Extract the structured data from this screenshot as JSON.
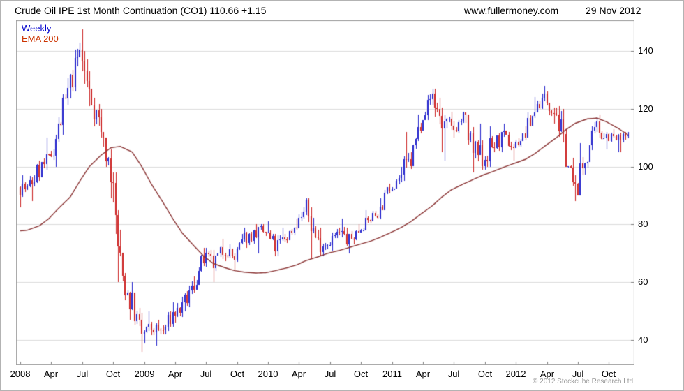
{
  "header": {
    "title": "Crude Oil IPE 1st Month Continuation (CO1) 110.66 +1.15",
    "website": "www.fullermoney.com",
    "date": "29 Nov 2012"
  },
  "footer": {
    "copyright": "© 2012 Stockcube Research Ltd"
  },
  "colors": {
    "legend_weekly": "#0000cc",
    "legend_ema": "#cc3300",
    "candle_up": "#2222cc",
    "candle_down": "#cc2222",
    "ema_line": "#8b3434",
    "grid": "#dcdcdc",
    "frame": "#a0a0a0",
    "tick": "#808080",
    "text": "#000000"
  },
  "chart_data": {
    "type": "candlestick",
    "instrument": "Crude Oil IPE 1st Month Continuation (CO1)",
    "interval": "Weekly",
    "last_price": 110.66,
    "change": "+1.15",
    "as_of": "29 Nov 2012",
    "ylim": [
      31,
      151
    ],
    "y_ticks": [
      40,
      60,
      80,
      100,
      120,
      140
    ],
    "x_tick_labels": [
      "2008",
      "Apr",
      "Jul",
      "Oct",
      "2009",
      "Apr",
      "Jul",
      "Oct",
      "2010",
      "Apr",
      "Jul",
      "Oct",
      "2011",
      "Apr",
      "Jul",
      "Oct",
      "2012",
      "Apr",
      "Jul",
      "Oct"
    ],
    "x_tick_month_step": 3,
    "grid": "horizontal",
    "legend_position": "top-left",
    "series": [
      {
        "name": "Weekly",
        "type": "candlestick"
      },
      {
        "name": "EMA 200",
        "type": "line",
        "monthly_values": [
          78,
          79.5,
          82,
          85.5,
          89.5,
          95,
          100,
          104,
          106.5,
          107,
          105,
          100,
          94,
          87.5,
          82,
          77,
          72.5,
          69,
          66.5,
          65,
          64,
          63.5,
          63.2,
          63.3,
          64,
          65,
          66,
          67.5,
          68.8,
          70,
          71,
          72,
          73,
          74.2,
          75.5,
          77,
          79,
          81,
          83.5,
          86.5,
          89.5,
          92,
          94,
          95.5,
          97,
          98.5,
          99.8,
          101,
          102.5,
          104.5,
          107,
          110,
          112.8,
          115,
          116.5,
          116.8,
          115.5,
          113.2,
          111
        ]
      }
    ],
    "monthly_ohlc_summary": [
      {
        "m": "2008-01",
        "h": 97,
        "l": 86,
        "c": 92
      },
      {
        "m": "2008-02",
        "h": 102,
        "l": 88,
        "c": 99
      },
      {
        "m": "2008-03",
        "h": 110,
        "l": 98,
        "c": 102
      },
      {
        "m": "2008-04",
        "h": 117,
        "l": 100,
        "c": 113
      },
      {
        "m": "2008-05",
        "h": 132,
        "l": 111,
        "c": 128
      },
      {
        "m": "2008-06",
        "h": 143,
        "l": 126,
        "c": 140
      },
      {
        "m": "2008-07",
        "h": 147.5,
        "l": 121,
        "c": 125
      },
      {
        "m": "2008-08",
        "h": 126,
        "l": 110,
        "c": 114
      },
      {
        "m": "2008-09",
        "h": 110,
        "l": 89,
        "c": 98
      },
      {
        "m": "2008-10",
        "h": 98,
        "l": 60,
        "c": 64
      },
      {
        "m": "2008-11",
        "h": 68,
        "l": 47,
        "c": 52
      },
      {
        "m": "2008-12",
        "h": 52,
        "l": 36,
        "c": 42
      },
      {
        "m": "2009-01",
        "h": 50,
        "l": 39,
        "c": 44
      },
      {
        "m": "2009-02",
        "h": 47,
        "l": 38,
        "c": 43
      },
      {
        "m": "2009-03",
        "h": 53,
        "l": 42,
        "c": 49
      },
      {
        "m": "2009-04",
        "h": 55,
        "l": 46,
        "c": 51
      },
      {
        "m": "2009-05",
        "h": 62,
        "l": 50,
        "c": 59
      },
      {
        "m": "2009-06",
        "h": 72,
        "l": 59,
        "c": 68
      },
      {
        "m": "2009-07",
        "h": 72,
        "l": 60,
        "c": 66
      },
      {
        "m": "2009-08",
        "h": 75,
        "l": 64,
        "c": 72
      },
      {
        "m": "2009-09",
        "h": 73,
        "l": 64,
        "c": 68
      },
      {
        "m": "2009-10",
        "h": 79,
        "l": 67,
        "c": 75
      },
      {
        "m": "2009-11",
        "h": 80,
        "l": 72,
        "c": 77
      },
      {
        "m": "2009-12",
        "h": 80,
        "l": 70,
        "c": 77
      },
      {
        "m": "2010-01",
        "h": 81,
        "l": 69,
        "c": 72
      },
      {
        "m": "2010-02",
        "h": 79,
        "l": 69,
        "c": 76
      },
      {
        "m": "2010-03",
        "h": 82,
        "l": 76,
        "c": 80
      },
      {
        "m": "2010-04",
        "h": 89,
        "l": 79,
        "c": 86
      },
      {
        "m": "2010-05",
        "h": 89,
        "l": 68,
        "c": 73
      },
      {
        "m": "2010-06",
        "h": 79,
        "l": 69,
        "c": 74
      },
      {
        "m": "2010-07",
        "h": 79,
        "l": 71,
        "c": 77
      },
      {
        "m": "2010-08",
        "h": 82,
        "l": 70,
        "c": 74
      },
      {
        "m": "2010-09",
        "h": 80,
        "l": 73,
        "c": 78
      },
      {
        "m": "2010-10",
        "h": 85,
        "l": 78,
        "c": 82
      },
      {
        "m": "2010-11",
        "h": 89,
        "l": 81,
        "c": 85
      },
      {
        "m": "2010-12",
        "h": 94,
        "l": 85,
        "c": 93
      },
      {
        "m": "2011-01",
        "h": 100,
        "l": 92,
        "c": 97
      },
      {
        "m": "2011-02",
        "h": 112,
        "l": 95,
        "c": 102
      },
      {
        "m": "2011-03",
        "h": 118,
        "l": 105,
        "c": 116
      },
      {
        "m": "2011-04",
        "h": 127,
        "l": 116,
        "c": 125
      },
      {
        "m": "2011-05",
        "h": 127,
        "l": 105,
        "c": 115
      },
      {
        "m": "2011-06",
        "h": 119,
        "l": 102,
        "c": 112
      },
      {
        "m": "2011-07",
        "h": 119,
        "l": 110,
        "c": 117
      },
      {
        "m": "2011-08",
        "h": 118,
        "l": 98,
        "c": 105
      },
      {
        "m": "2011-09",
        "h": 115,
        "l": 99,
        "c": 103
      },
      {
        "m": "2011-10",
        "h": 114,
        "l": 99,
        "c": 108
      },
      {
        "m": "2011-11",
        "h": 115,
        "l": 105,
        "c": 110
      },
      {
        "m": "2011-12",
        "h": 112,
        "l": 102,
        "c": 107
      },
      {
        "m": "2012-01",
        "h": 114,
        "l": 107,
        "c": 111
      },
      {
        "m": "2012-02",
        "h": 124,
        "l": 110,
        "c": 120
      },
      {
        "m": "2012-03",
        "h": 128,
        "l": 120,
        "c": 124
      },
      {
        "m": "2012-04",
        "h": 126,
        "l": 115,
        "c": 119
      },
      {
        "m": "2012-05",
        "h": 121,
        "l": 100,
        "c": 103
      },
      {
        "m": "2012-06",
        "h": 103,
        "l": 88,
        "c": 91
      },
      {
        "m": "2012-07",
        "h": 108,
        "l": 90,
        "c": 105
      },
      {
        "m": "2012-08",
        "h": 117,
        "l": 104,
        "c": 113
      },
      {
        "m": "2012-09",
        "h": 118,
        "l": 106,
        "c": 111
      },
      {
        "m": "2012-10",
        "h": 113,
        "l": 105,
        "c": 109
      },
      {
        "m": "2012-11",
        "h": 112,
        "l": 105,
        "c": 110.66
      }
    ]
  }
}
